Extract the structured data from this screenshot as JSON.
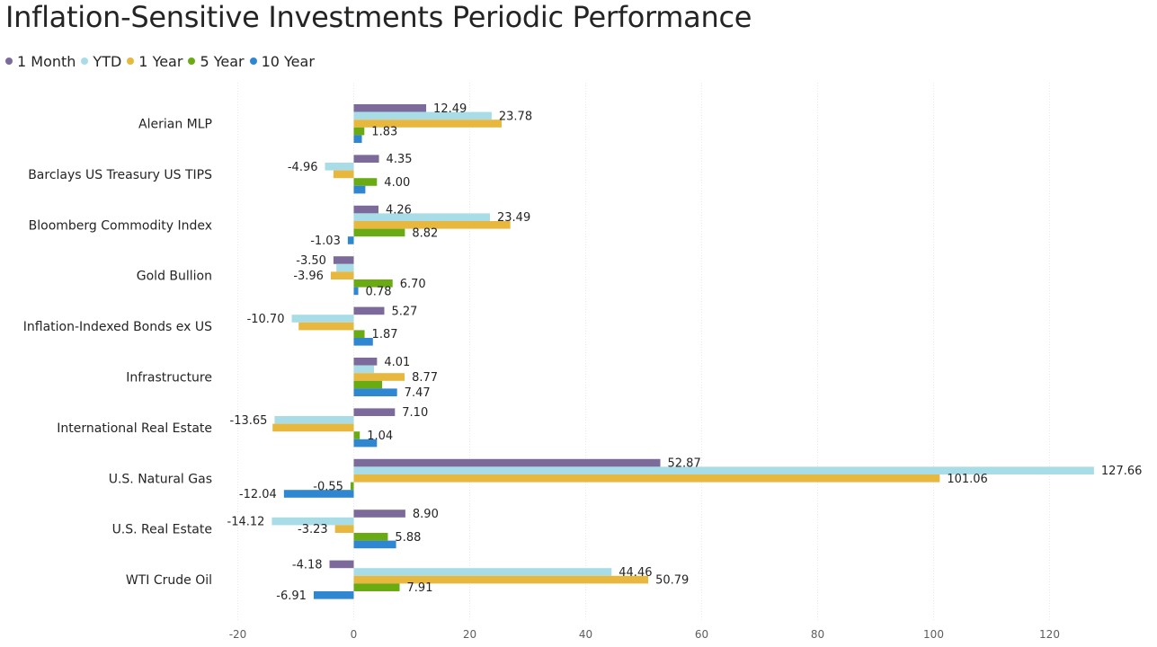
{
  "chart_data": {
    "type": "bar",
    "orientation": "horizontal",
    "title": "Inflation-Sensitive Investments Periodic Performance",
    "categories": [
      "Alerian MLP",
      "Barclays US Treasury US TIPS",
      "Bloomberg Commodity Index",
      "Gold Bullion",
      "Inflation-Indexed Bonds ex US",
      "Infrastructure",
      "International Real Estate",
      "U.S. Natural Gas",
      "U.S. Real Estate",
      "WTI Crude Oil"
    ],
    "series": [
      {
        "name": "1 Month",
        "color": "#7c6a9a",
        "values": [
          12.49,
          4.35,
          4.26,
          -3.5,
          5.27,
          4.01,
          7.1,
          52.87,
          8.9,
          -4.18
        ],
        "labels": [
          "12.49",
          "4.35",
          "4.26",
          "-3.50",
          "5.27",
          "4.01",
          "7.10",
          "52.87",
          "8.90",
          "-4.18"
        ]
      },
      {
        "name": "YTD",
        "color": "#a8dde8",
        "values": [
          23.78,
          -4.96,
          23.49,
          -3.0,
          -10.7,
          3.5,
          -13.65,
          127.66,
          -14.12,
          44.46
        ],
        "labels": [
          "23.78",
          "-4.96",
          "23.49",
          "",
          "-10.70",
          "",
          "-13.65",
          "127.66",
          "-14.12",
          "44.46"
        ]
      },
      {
        "name": "1 Year",
        "color": "#e8b73e",
        "values": [
          25.5,
          -3.5,
          27.0,
          -3.96,
          -9.5,
          8.77,
          -14.0,
          101.06,
          -3.23,
          50.79
        ],
        "labels": [
          "",
          "",
          "",
          "-3.96",
          "",
          "8.77",
          "",
          "101.06",
          "-3.23",
          "50.79"
        ]
      },
      {
        "name": "5 Year",
        "color": "#6aab14",
        "values": [
          1.83,
          4.0,
          8.82,
          6.7,
          1.87,
          4.9,
          1.04,
          -0.55,
          5.88,
          7.91
        ],
        "labels": [
          "1.83",
          "4.00",
          "8.82",
          "6.70",
          "1.87",
          "",
          "1.04",
          "-0.55",
          "5.88",
          "7.91"
        ]
      },
      {
        "name": "10 Year",
        "color": "#2f87d2",
        "values": [
          1.4,
          2.0,
          -1.03,
          0.78,
          3.3,
          7.47,
          4.0,
          -12.04,
          7.3,
          -6.91
        ],
        "labels": [
          "",
          "",
          "-1.03",
          "0.78",
          "",
          "7.47",
          "",
          "-12.04",
          "",
          "-6.91"
        ]
      }
    ],
    "xlim": [
      -20,
      130
    ],
    "xticks": [
      "-20",
      "0",
      "20",
      "40",
      "60",
      "80",
      "100",
      "120"
    ],
    "xtick_values": [
      -20,
      0,
      20,
      40,
      60,
      80,
      100,
      120
    ],
    "grid": true,
    "legend_position": "top-left"
  }
}
